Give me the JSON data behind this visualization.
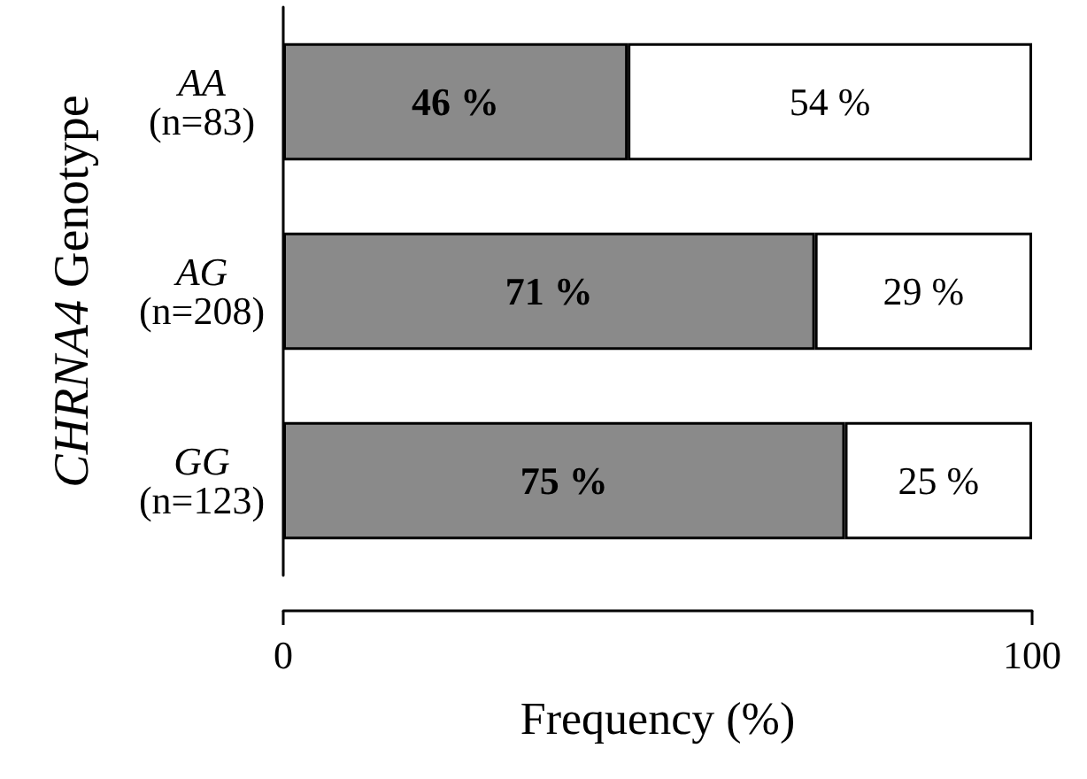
{
  "chart_data": {
    "type": "bar",
    "orientation": "horizontal",
    "stacked": true,
    "xlabel": "Frequency (%)",
    "ylabel": "CHRNA4 Genotype",
    "categories": [
      "AA\n(n=83)",
      "AG\n(n=208)",
      "GG\n(n=123)"
    ],
    "series": [
      {
        "color": "#8a8a8a",
        "values": [
          46,
          71,
          75
        ],
        "value_labels": [
          "46 %",
          "71 %",
          "75 %"
        ]
      },
      {
        "color": "#ffffff",
        "values": [
          54,
          29,
          25
        ],
        "value_labels": [
          "54 %",
          "29 %",
          "25 %"
        ]
      }
    ],
    "xlim": [
      0,
      100
    ],
    "xticks": [
      0,
      100
    ],
    "grid": false
  }
}
